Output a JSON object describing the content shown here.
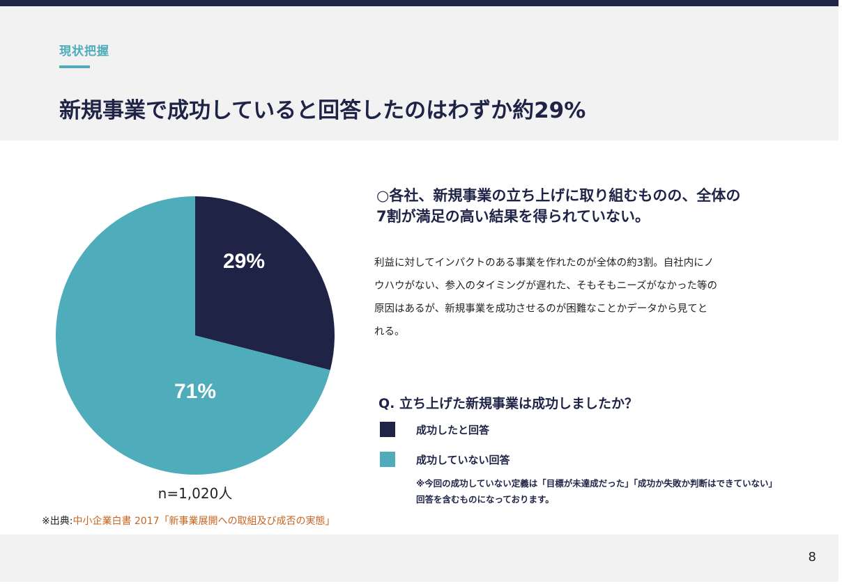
{
  "header": {
    "section_label": "現状把握",
    "title": "新規事業で成功していると回答したのはわずか約29%"
  },
  "colors": {
    "navy": "#1f2447",
    "teal": "#4eacbb",
    "accent_orange": "#c8641e"
  },
  "chart_data": {
    "type": "pie",
    "title": "",
    "categories": [
      "成功したと回答",
      "成功していない回答"
    ],
    "values": [
      29,
      71
    ],
    "unit": "%",
    "data_labels": [
      "29%",
      "71%"
    ],
    "colors": [
      "#1f2447",
      "#4eacbb"
    ],
    "sample_size": "n=1,020人"
  },
  "source": {
    "prefix": "※出典:",
    "text": "中小企業白書 2017「新事業展開への取組及び成否の実態」"
  },
  "content": {
    "headline_line1": "○各社、新規事業の立ち上げに取り組むものの、全体の",
    "headline_line2": "7割が満足の高い結果を得られていない。",
    "body_line1": "利益に対してインパクトのある事業を作れたのが全体の約3割。自社内にノ",
    "body_line2": "ウハウがない、参入のタイミングが遅れた、そもそもニーズがなかった等の",
    "body_line3": "原因はあるが、新規事業を成功させるのが困難なことかデータから見てと",
    "body_line4": "れる。"
  },
  "legend": {
    "question": "Q. 立ち上げた新規事業は成功しましたか？",
    "items": [
      {
        "label": "成功したと回答",
        "color": "#1f2447"
      },
      {
        "label": "成功していない回答",
        "color": "#4eacbb"
      }
    ],
    "note_line1": "※今回の成功していない定義は「目標が未達成だった」「成功か失敗か判断はできていない」",
    "note_line2": "回答を含むものになっております。"
  },
  "footer": {
    "page_number": "8"
  }
}
